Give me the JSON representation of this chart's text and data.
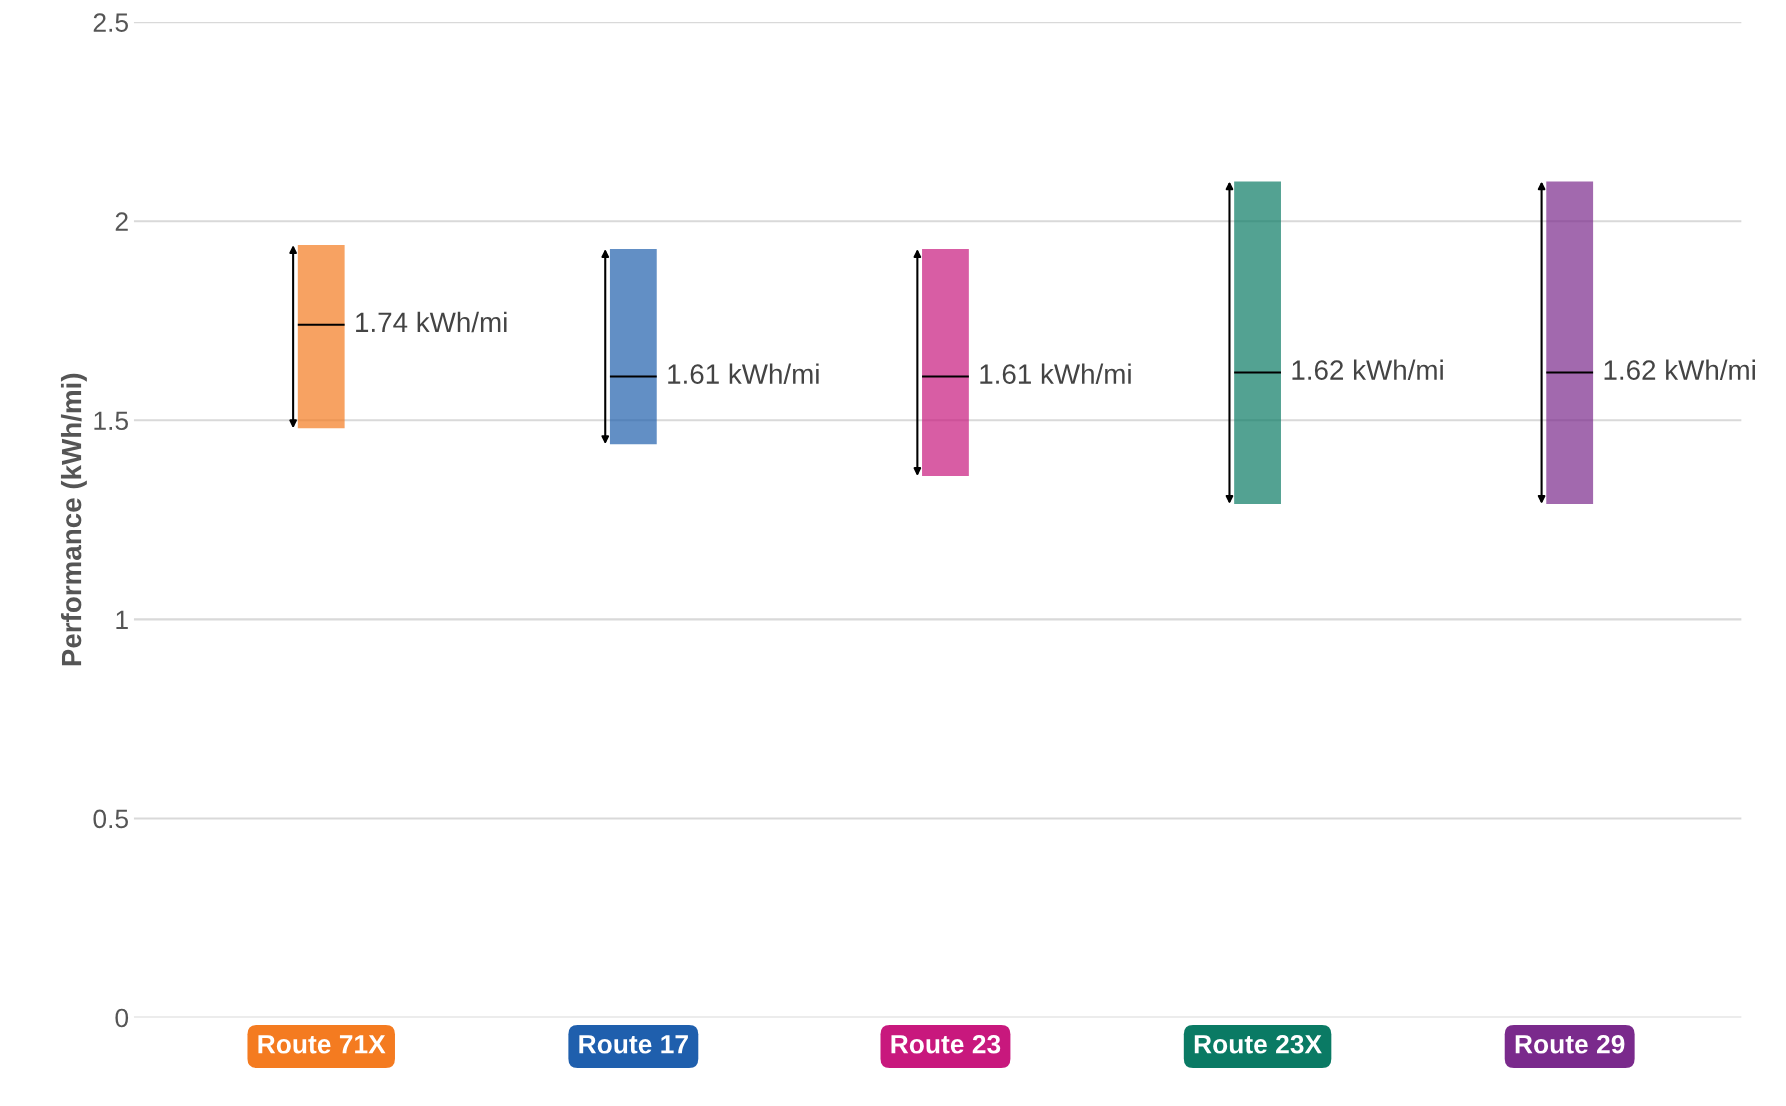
{
  "chart_data": {
    "type": "box",
    "ylabel": "Performance (kWh/mi)",
    "categories": [
      "Route 71X",
      "Route 17",
      "Route 23",
      "Route 23X",
      "Route 29"
    ],
    "boxes": [
      {
        "low": 1.48,
        "q1": 1.48,
        "median": 1.74,
        "q3": 1.94,
        "high": 1.94
      },
      {
        "low": 1.44,
        "q1": 1.44,
        "median": 1.61,
        "q3": 1.93,
        "high": 1.93
      },
      {
        "low": 1.36,
        "q1": 1.36,
        "median": 1.61,
        "q3": 1.93,
        "high": 1.93
      },
      {
        "low": 1.29,
        "q1": 1.29,
        "median": 1.62,
        "q3": 2.1,
        "high": 2.1
      },
      {
        "low": 1.29,
        "q1": 1.29,
        "median": 1.62,
        "q3": 2.1,
        "high": 2.1
      }
    ],
    "colors": [
      "#f47b20",
      "#1f5fad",
      "#c8187d",
      "#0a7a64",
      "#7a2a8c"
    ],
    "annotations": [
      "1.74 kWh/mi",
      "1.61 kWh/mi",
      "1.61 kWh/mi",
      "1.62 kWh/mi",
      "1.62 kWh/mi"
    ],
    "ylim": [
      0,
      2.5
    ],
    "yticks": [
      0,
      0.5,
      1,
      1.5,
      2,
      2.5
    ],
    "grid": "y"
  }
}
